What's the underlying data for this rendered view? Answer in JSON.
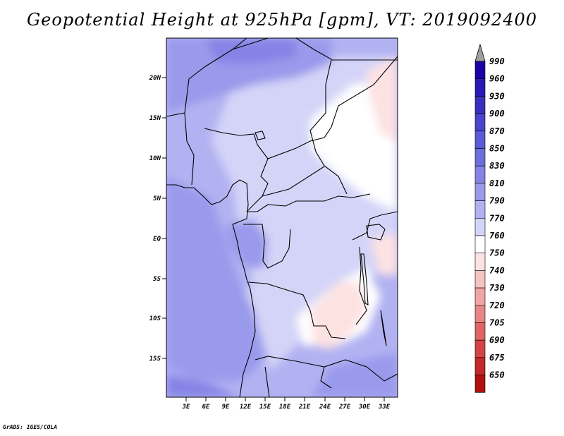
{
  "header": {
    "title": "Geopotential Height at 925hPa [gpm], VT: 2019092400"
  },
  "credit": "GrADS: IGES/COLA",
  "map": {
    "lat_labels": [
      "20N",
      "15N",
      "10N",
      "5N",
      "EQ",
      "5S",
      "10S",
      "15S"
    ],
    "lon_labels": [
      "3E",
      "6E",
      "9E",
      "12E",
      "15E",
      "18E",
      "21E",
      "24E",
      "27E",
      "30E",
      "33E"
    ],
    "lat_range": [
      -20,
      24
    ],
    "lon_range": [
      0,
      35
    ]
  },
  "colorbar": {
    "levels": [
      "990",
      "960",
      "930",
      "900",
      "870",
      "850",
      "830",
      "810",
      "790",
      "770",
      "760",
      "750",
      "740",
      "730",
      "720",
      "705",
      "690",
      "675",
      "650"
    ],
    "colors": [
      "#1c00a8",
      "#2a19b5",
      "#3a30c0",
      "#4a45cb",
      "#5c5ad6",
      "#6f6ede",
      "#8584e6",
      "#9a9aec",
      "#b2b2f2",
      "#d4d4f8",
      "#ffffff",
      "#fde2e2",
      "#f7c2c2",
      "#f0a4a4",
      "#e88686",
      "#df6464",
      "#d34444",
      "#c42828",
      "#b01010"
    ],
    "top_arrow_color": "#a0a0a0",
    "bottom_arrow_color": "#b01010"
  }
}
